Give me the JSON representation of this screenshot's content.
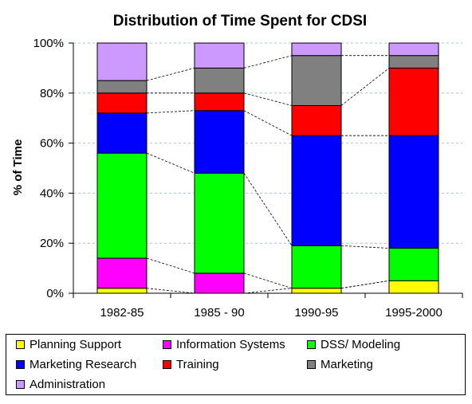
{
  "chart_data": {
    "type": "bar",
    "stacked": true,
    "title": "Distribution of Time Spent for CDSI",
    "xlabel": "",
    "ylabel": "% of Time",
    "ylim": [
      0,
      100
    ],
    "y_ticks": [
      "0%",
      "20%",
      "40%",
      "60%",
      "80%",
      "100%"
    ],
    "categories": [
      "1982-85",
      "1985 - 90",
      "1990-95",
      "1995-2000"
    ],
    "grid": "horizontal dashed",
    "legend_position": "bottom",
    "series": [
      {
        "name": "Planning Support",
        "color": "#ffff00",
        "values": [
          2,
          0,
          2,
          5
        ]
      },
      {
        "name": "Information Systems",
        "color": "#ff00ff",
        "values": [
          12,
          8,
          0,
          0
        ]
      },
      {
        "name": "DSS/ Modeling",
        "color": "#00ff00",
        "values": [
          42,
          40,
          17,
          13
        ]
      },
      {
        "name": "Marketing Research",
        "color": "#0000ff",
        "values": [
          16,
          25,
          44,
          45
        ]
      },
      {
        "name": "Training",
        "color": "#ff0000",
        "values": [
          8,
          7,
          12,
          27
        ]
      },
      {
        "name": "Marketing",
        "color": "#808080",
        "values": [
          5,
          10,
          20,
          5
        ]
      },
      {
        "name": "Administration",
        "color": "#cc99ff",
        "values": [
          15,
          10,
          5,
          5
        ]
      }
    ]
  }
}
